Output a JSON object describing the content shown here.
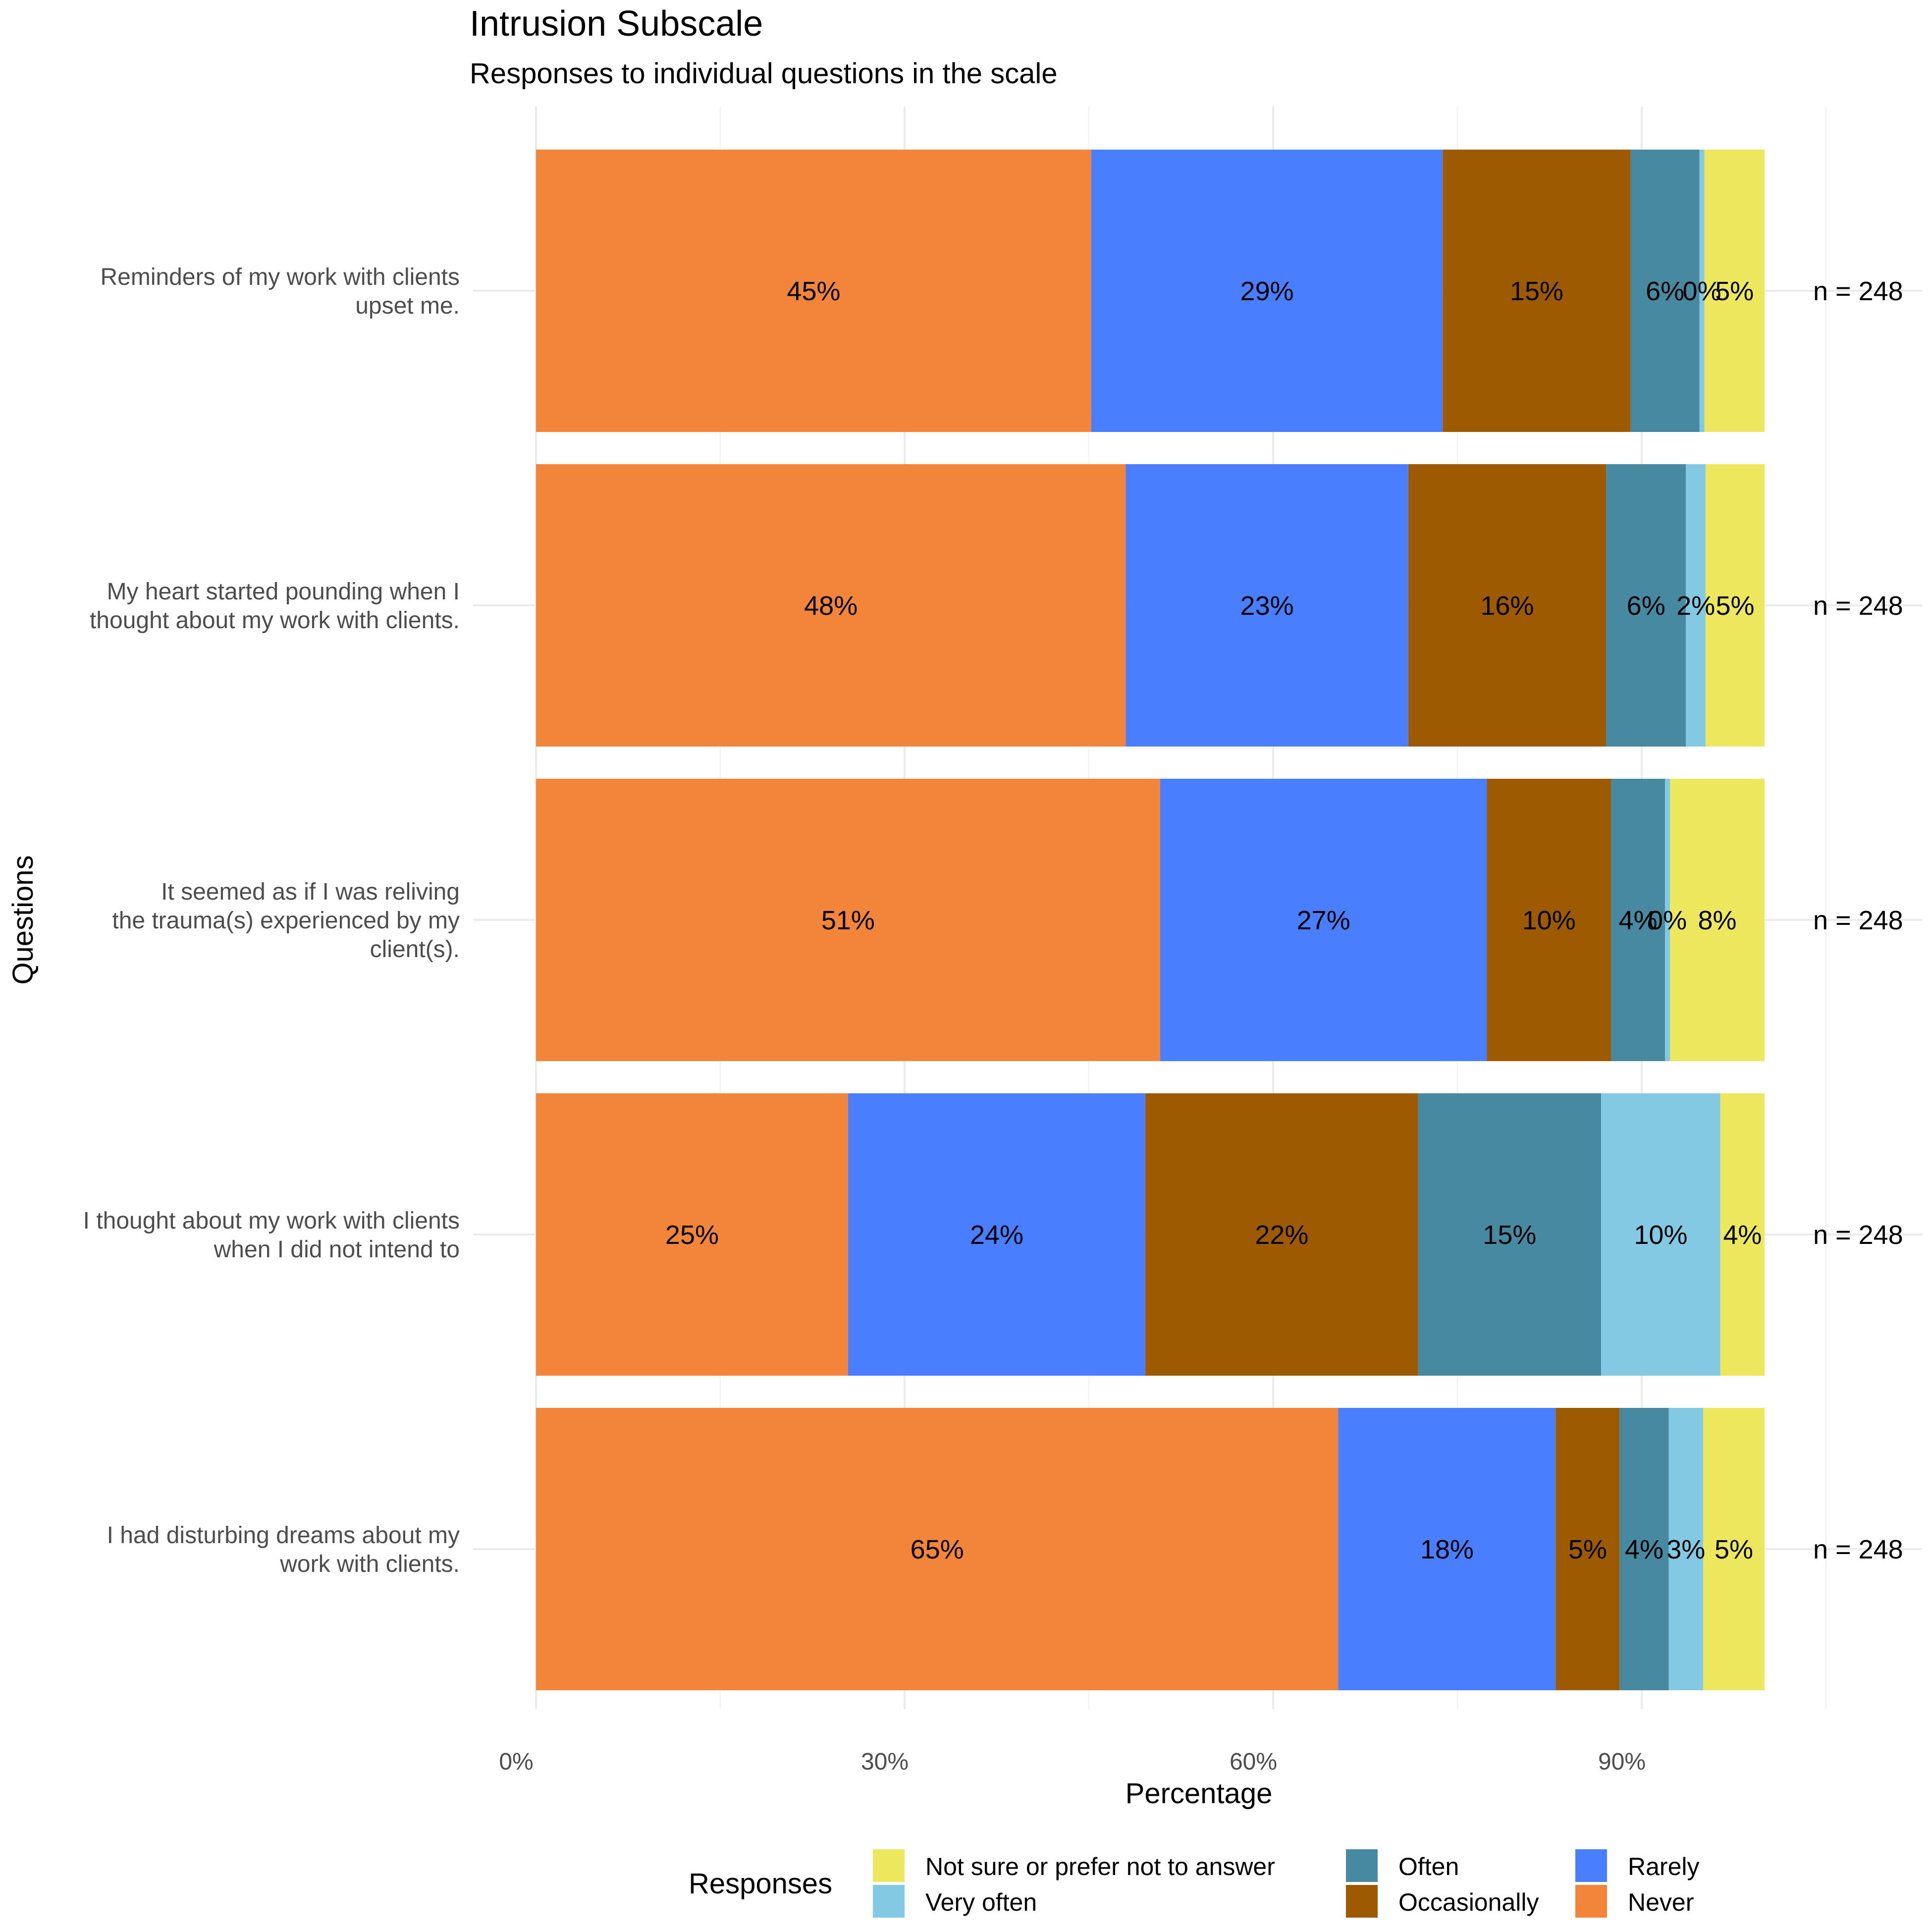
{
  "chart_data": {
    "type": "bar",
    "orientation": "horizontal",
    "stacked": true,
    "title": "Intrusion Subscale",
    "subtitle": "Responses to individual questions in the scale",
    "xlabel": "Percentage",
    "ylabel": "Questions",
    "xlim": [
      0,
      105
    ],
    "x_ticks": [
      0,
      30,
      60,
      90
    ],
    "x_tick_labels": [
      "0%",
      "30%",
      "60%",
      "90%"
    ],
    "x_minor_ticks": [
      15,
      45,
      75,
      105
    ],
    "grid": true,
    "categories": [
      [
        "Reminders of my work with clients",
        "upset me."
      ],
      [
        "My heart started pounding when I",
        "thought about my work with clients."
      ],
      [
        "It seemed as if I was reliving",
        "the trauma(s) experienced by my",
        "client(s)."
      ],
      [
        "I thought about my work with clients",
        "when I did not intend to"
      ],
      [
        "I had disturbing dreams about my",
        "work with clients."
      ]
    ],
    "series": [
      {
        "name": "Never",
        "color": "#F2853A",
        "values": [
          45.2,
          48.0,
          50.8,
          25.4,
          65.3
        ],
        "labels": [
          "45%",
          "48%",
          "51%",
          "25%",
          "65%"
        ]
      },
      {
        "name": "Rarely",
        "color": "#487EFF",
        "values": [
          28.6,
          23.0,
          26.6,
          24.2,
          17.7
        ],
        "labels": [
          "29%",
          "23%",
          "27%",
          "24%",
          "18%"
        ]
      },
      {
        "name": "Occasionally",
        "color": "#9E5A00",
        "values": [
          15.3,
          16.1,
          10.1,
          22.2,
          5.2
        ],
        "labels": [
          "15%",
          "16%",
          "10%",
          "22%",
          "5%"
        ]
      },
      {
        "name": "Often",
        "color": "#4889A2",
        "values": [
          5.6,
          6.5,
          4.4,
          14.9,
          4.0
        ],
        "labels": [
          "6%",
          "6%",
          "4%",
          "15%",
          "4%"
        ]
      },
      {
        "name": "Very often",
        "color": "#84C9E4",
        "values": [
          0.4,
          1.6,
          0.4,
          9.7,
          2.8
        ],
        "labels": [
          "0%",
          "2%",
          "0%",
          "10%",
          "3%"
        ]
      },
      {
        "name": "Not sure or prefer not to answer",
        "color": "#EDE75E",
        "values": [
          4.9,
          4.8,
          7.7,
          3.6,
          5.0
        ],
        "labels": [
          "5%",
          "5%",
          "8%",
          "4%",
          "5%"
        ]
      }
    ],
    "n_labels": [
      "n = 248",
      "n = 248",
      "n = 248",
      "n = 248",
      "n = 248"
    ],
    "legend": {
      "title": "Responses",
      "position": "bottom",
      "items": [
        {
          "name": "Not sure or prefer not to answer",
          "color": "#EDE75E"
        },
        {
          "name": "Very often",
          "color": "#84C9E4"
        },
        {
          "name": "Often",
          "color": "#4889A2"
        },
        {
          "name": "Occasionally",
          "color": "#9E5A00"
        },
        {
          "name": "Rarely",
          "color": "#487EFF"
        },
        {
          "name": "Never",
          "color": "#F2853A"
        }
      ]
    }
  }
}
